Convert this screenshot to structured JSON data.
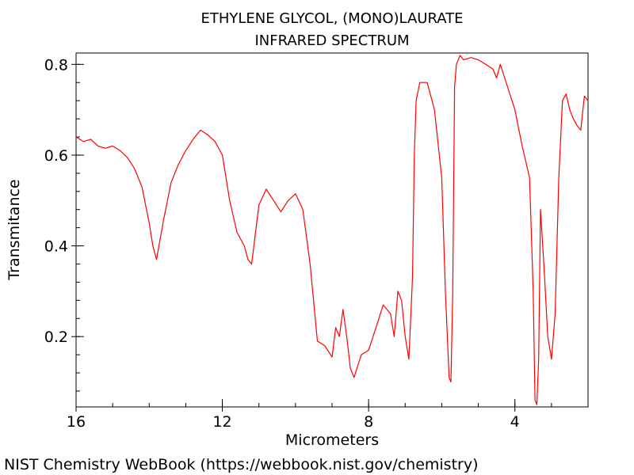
{
  "chart_data": {
    "type": "line",
    "title": "ETHYLENE GLYCOL, (MONO)LAURATE",
    "subtitle": "INFRARED SPECTRUM",
    "xlabel": "Micrometers",
    "ylabel": "Transmitance",
    "xlim": [
      16,
      2
    ],
    "ylim": [
      0.045,
      0.825
    ],
    "x_ticks": [
      16,
      12,
      8,
      4
    ],
    "x_tick_labels": [
      "16",
      "12",
      "8",
      "4"
    ],
    "y_ticks": [
      0.2,
      0.4,
      0.6,
      0.8
    ],
    "y_tick_labels": [
      "0.2",
      "0.4",
      "0.6",
      "0.8"
    ],
    "grid": false,
    "line_color": "#ff0000",
    "series": [
      {
        "x": [
          16.0,
          15.8,
          15.6,
          15.4,
          15.2,
          15.0,
          14.8,
          14.6,
          14.4,
          14.2,
          14.0,
          13.9,
          13.8,
          13.6,
          13.4,
          13.2,
          13.0,
          12.8,
          12.6,
          12.4,
          12.2,
          12.0,
          11.8,
          11.6,
          11.4,
          11.3,
          11.2,
          11.0,
          10.8,
          10.6,
          10.4,
          10.2,
          10.0,
          9.8,
          9.6,
          9.4,
          9.2,
          9.0,
          8.9,
          8.8,
          8.7,
          8.6,
          8.5,
          8.4,
          8.2,
          8.0,
          7.8,
          7.6,
          7.4,
          7.3,
          7.2,
          7.1,
          7.0,
          6.9,
          6.8,
          6.75,
          6.7,
          6.6,
          6.4,
          6.2,
          6.0,
          5.9,
          5.8,
          5.75,
          5.7,
          5.65,
          5.6,
          5.5,
          5.4,
          5.2,
          5.0,
          4.8,
          4.6,
          4.5,
          4.4,
          4.2,
          4.0,
          3.8,
          3.6,
          3.5,
          3.45,
          3.4,
          3.35,
          3.3,
          3.2,
          3.1,
          3.0,
          2.9,
          2.8,
          2.7,
          2.6,
          2.5,
          2.4,
          2.3,
          2.2,
          2.1,
          2.0
        ],
        "y": [
          0.64,
          0.63,
          0.635,
          0.62,
          0.615,
          0.62,
          0.61,
          0.595,
          0.57,
          0.53,
          0.45,
          0.4,
          0.37,
          0.46,
          0.54,
          0.58,
          0.61,
          0.635,
          0.655,
          0.645,
          0.63,
          0.6,
          0.5,
          0.43,
          0.4,
          0.37,
          0.36,
          0.49,
          0.525,
          0.5,
          0.475,
          0.5,
          0.515,
          0.48,
          0.36,
          0.19,
          0.18,
          0.155,
          0.22,
          0.2,
          0.26,
          0.2,
          0.13,
          0.11,
          0.16,
          0.17,
          0.22,
          0.27,
          0.25,
          0.2,
          0.3,
          0.28,
          0.2,
          0.15,
          0.33,
          0.6,
          0.72,
          0.76,
          0.76,
          0.7,
          0.55,
          0.3,
          0.11,
          0.1,
          0.3,
          0.75,
          0.8,
          0.82,
          0.81,
          0.815,
          0.81,
          0.8,
          0.79,
          0.77,
          0.8,
          0.75,
          0.7,
          0.62,
          0.55,
          0.3,
          0.06,
          0.05,
          0.15,
          0.48,
          0.35,
          0.2,
          0.15,
          0.25,
          0.55,
          0.72,
          0.735,
          0.7,
          0.68,
          0.665,
          0.655,
          0.73,
          0.72
        ]
      }
    ]
  },
  "footer": "NIST Chemistry WebBook (https://webbook.nist.gov/chemistry)"
}
